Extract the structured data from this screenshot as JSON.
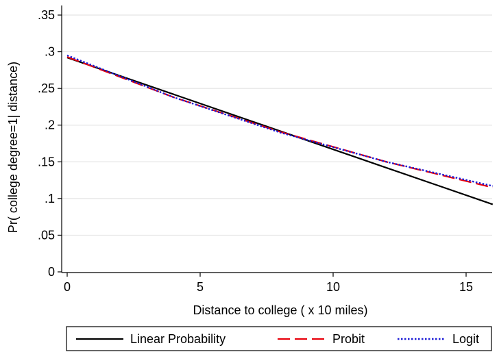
{
  "chart_data": {
    "type": "line",
    "title": "",
    "xlabel": "Distance to college ( x 10 miles)",
    "ylabel": "Pr( college degree=1| distance)",
    "xlim": [
      0,
      16
    ],
    "ylim": [
      0,
      0.35
    ],
    "x_ticks": [
      0,
      5,
      10,
      15
    ],
    "x_tick_labels": [
      "0",
      "5",
      "10",
      "15"
    ],
    "y_ticks": [
      0,
      0.05,
      0.1,
      0.15,
      0.2,
      0.25,
      0.3,
      0.35
    ],
    "y_tick_labels": [
      "0",
      ".05",
      ".1",
      ".15",
      ".2",
      ".25",
      ".3",
      ".35"
    ],
    "grid": "horizontal",
    "legend_position": "bottom",
    "x": [
      0,
      4,
      8,
      12,
      16
    ],
    "series": [
      {
        "name": "Linear Probability",
        "color": "#000000",
        "style": "solid",
        "values": [
          0.292,
          0.242,
          0.192,
          0.142,
          0.092
        ]
      },
      {
        "name": "Probit",
        "color": "#e8000b",
        "style": "dashed",
        "values": [
          0.293,
          0.238,
          0.191,
          0.15,
          0.115
        ]
      },
      {
        "name": "Logit",
        "color": "#1a1ad6",
        "style": "dotted",
        "values": [
          0.295,
          0.238,
          0.19,
          0.15,
          0.117
        ]
      }
    ]
  }
}
